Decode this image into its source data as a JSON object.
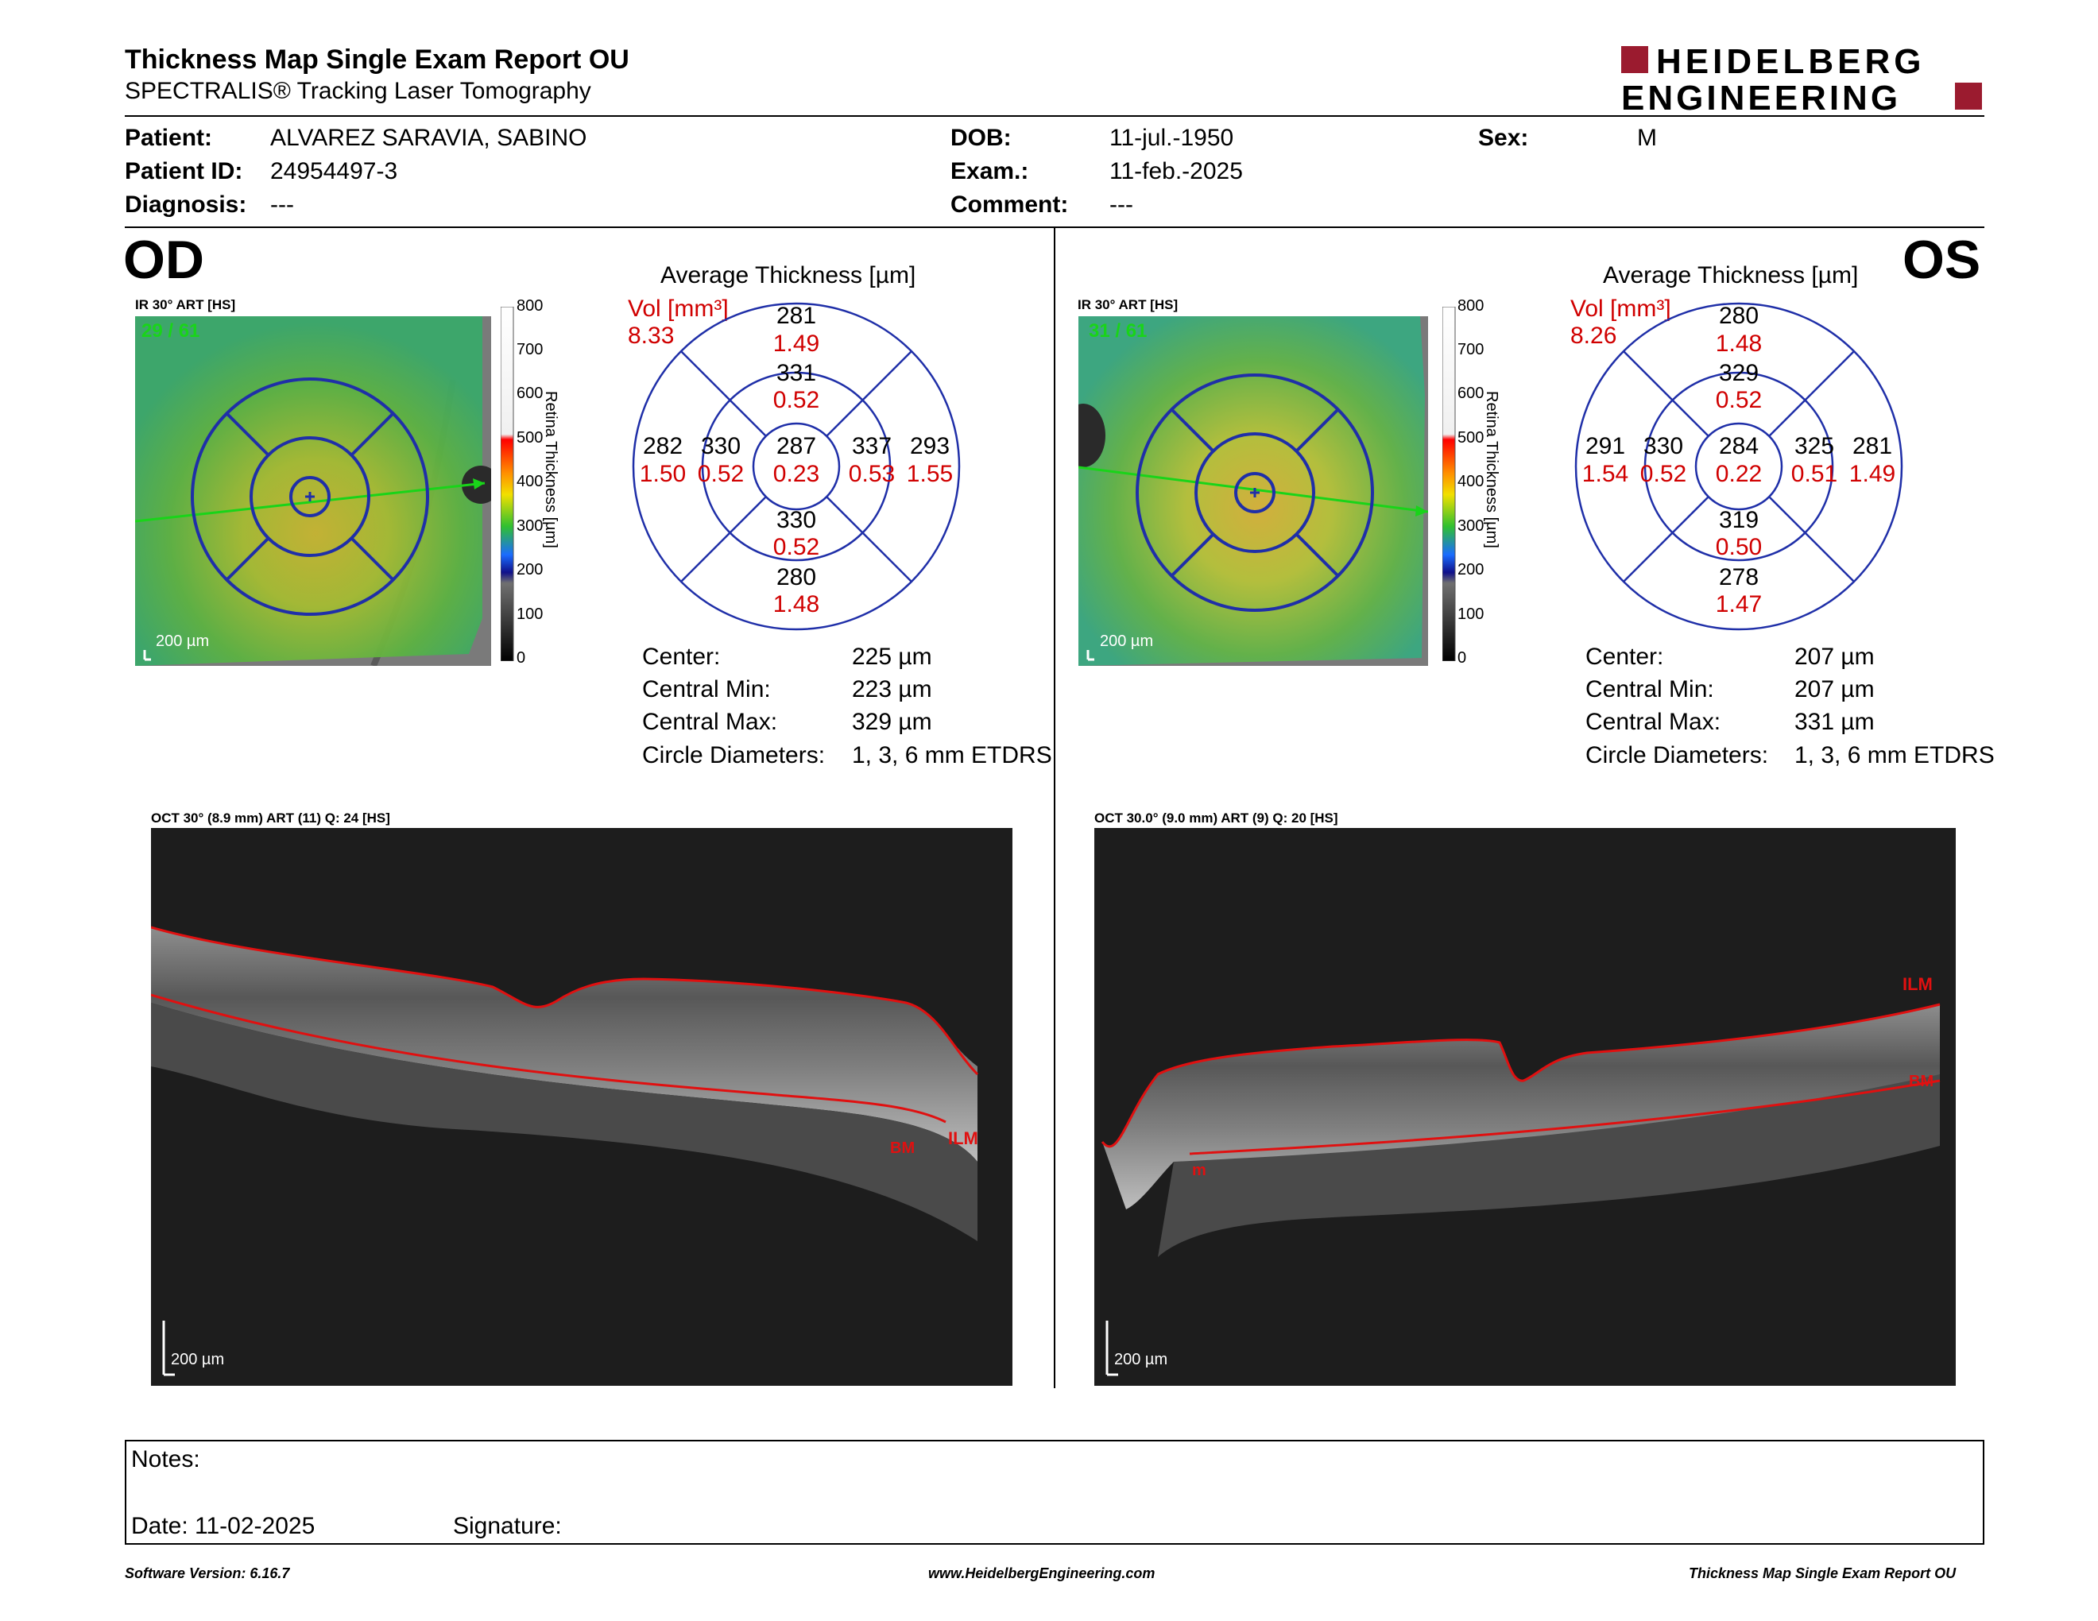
{
  "header": {
    "title": "Thickness Map Single Exam Report OU",
    "subtitle": "SPECTRALIS® Tracking Laser Tomography",
    "logo_line1": "HEIDELBERG",
    "logo_line2": "ENGINEERING",
    "logo_color": "#9b1b2f"
  },
  "patient": {
    "patient_label": "Patient:",
    "patient_value": "ALVAREZ SARAVIA, SABINO",
    "id_label": "Patient ID:",
    "id_value": "24954497-3",
    "diagnosis_label": "Diagnosis:",
    "diagnosis_value": "---",
    "dob_label": "DOB:",
    "dob_value": "11-jul.-1950",
    "exam_label": "Exam.:",
    "exam_value": "11-feb.-2025",
    "comment_label": "Comment:",
    "comment_value": "---",
    "sex_label": "Sex:",
    "sex_value": "M"
  },
  "od": {
    "eye_label": "OD",
    "ir_title": "IR 30° ART [HS]",
    "frame_counter": "29 / 61",
    "scale_bar": "200 µm",
    "avg_title": "Average Thickness [µm]",
    "vol_label": "Vol [mm³]",
    "vol_total": "8.33",
    "grid": {
      "center": {
        "thick": "287",
        "vol": "0.23"
      },
      "inner_sup": {
        "thick": "331",
        "vol": "0.52"
      },
      "inner_inf": {
        "thick": "330",
        "vol": "0.52"
      },
      "inner_left": {
        "thick": "330",
        "vol": "0.52"
      },
      "inner_right": {
        "thick": "337",
        "vol": "0.53"
      },
      "outer_sup": {
        "thick": "281",
        "vol": "1.49"
      },
      "outer_inf": {
        "thick": "280",
        "vol": "1.48"
      },
      "outer_left": {
        "thick": "282",
        "vol": "1.50"
      },
      "outer_right": {
        "thick": "293",
        "vol": "1.55"
      }
    },
    "stats": [
      {
        "label": "Center:",
        "value": "225 µm"
      },
      {
        "label": "Central Min:",
        "value": "223 µm"
      },
      {
        "label": "Central Max:",
        "value": "329 µm"
      },
      {
        "label": "Circle Diameters:",
        "value": "1, 3, 6 mm ETDRS"
      }
    ],
    "oct_title": "OCT 30° (8.9 mm) ART (11) Q: 24 [HS]",
    "oct_scale": "200 µm",
    "ilm_label": "ILM",
    "bm_label": "BM"
  },
  "os": {
    "eye_label": "OS",
    "ir_title": "IR 30° ART [HS]",
    "frame_counter": "31 / 61",
    "scale_bar": "200 µm",
    "avg_title": "Average Thickness [µm]",
    "vol_label": "Vol [mm³]",
    "vol_total": "8.26",
    "grid": {
      "center": {
        "thick": "284",
        "vol": "0.22"
      },
      "inner_sup": {
        "thick": "329",
        "vol": "0.52"
      },
      "inner_inf": {
        "thick": "319",
        "vol": "0.50"
      },
      "inner_left": {
        "thick": "330",
        "vol": "0.52"
      },
      "inner_right": {
        "thick": "325",
        "vol": "0.51"
      },
      "outer_sup": {
        "thick": "280",
        "vol": "1.48"
      },
      "outer_inf": {
        "thick": "278",
        "vol": "1.47"
      },
      "outer_left": {
        "thick": "291",
        "vol": "1.54"
      },
      "outer_right": {
        "thick": "281",
        "vol": "1.49"
      }
    },
    "stats": [
      {
        "label": "Center:",
        "value": "207 µm"
      },
      {
        "label": "Central Min:",
        "value": "207 µm"
      },
      {
        "label": "Central Max:",
        "value": "331 µm"
      },
      {
        "label": "Circle Diameters:",
        "value": "1, 3, 6 mm ETDRS"
      }
    ],
    "oct_title": "OCT 30.0° (9.0 mm) ART (9) Q: 20 [HS]",
    "oct_scale": "200 µm",
    "ilm_label": "ILM",
    "bm_label": "BM",
    "extra_label": "m"
  },
  "colorbar": {
    "ticks": [
      "800",
      "700",
      "600",
      "500",
      "400",
      "300",
      "200",
      "100",
      "0"
    ],
    "label": "Retina Thickness [µm]"
  },
  "notes": {
    "notes_label": "Notes:",
    "date_label": "Date: 11-02-2025",
    "signature_label": "Signature:"
  },
  "footer": {
    "software": "Software Version: 6.16.7",
    "website": "www.HeidelbergEngineering.com",
    "report_name": "Thickness Map Single Exam Report OU"
  },
  "colors": {
    "grid_blue": "#1f2fa8",
    "vol_red": "#d00000",
    "green_arrow": "#19d419",
    "segment_red": "#e01010"
  }
}
